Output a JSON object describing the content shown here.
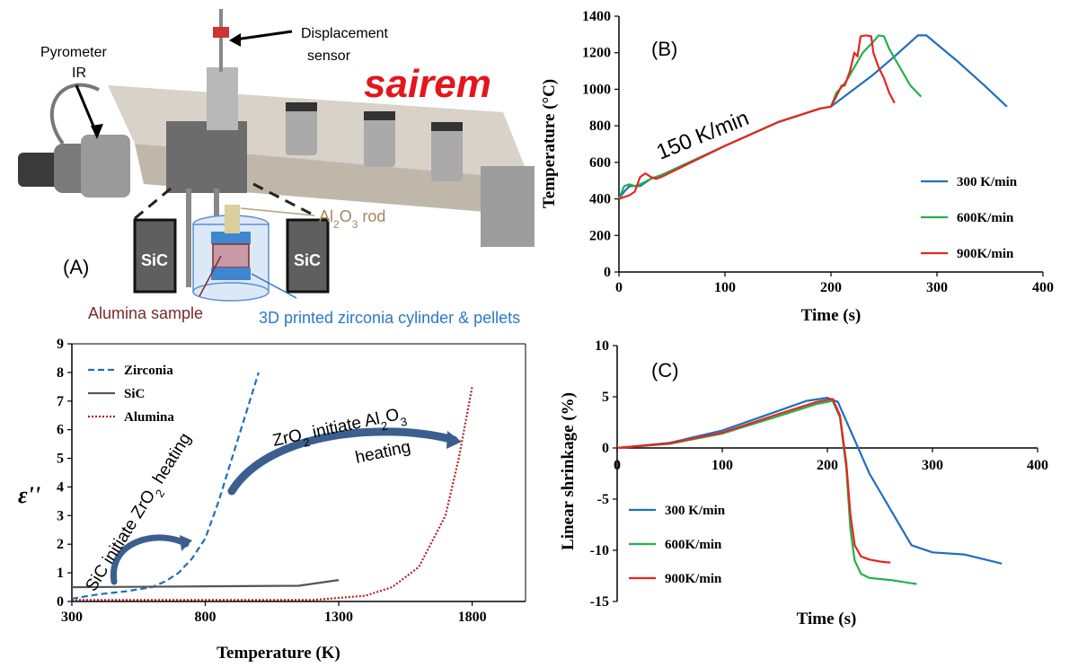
{
  "photo": {
    "label_A": "(A)",
    "pyrometer_line1": "Pyrometer",
    "pyrometer_line2": "IR",
    "displacement_line1": "Displacement",
    "displacement_line2": "sensor",
    "brand": "sairem",
    "sic_left": "SiC",
    "sic_right": "SiC",
    "rod_label_main": "Al",
    "rod_label_sub": "2",
    "rod_label_o": "O",
    "rod_label_sub3": "3",
    "rod_label_tail": " rod",
    "sample_label": "Alumina sample",
    "cylinder_label": "3D printed zirconia cylinder & pellets",
    "colors": {
      "rod": "#b3a07a",
      "sample": "#7a2a2a",
      "cylinder": "#2a78c8"
    }
  },
  "chart_data": [
    {
      "id": "B",
      "type": "line",
      "panel_label": "(B)",
      "xlabel": "Time (s)",
      "ylabel": "Temperature (°C)",
      "xlim": [
        0,
        400
      ],
      "ylim": [
        0,
        1400
      ],
      "xticks": [
        0,
        100,
        200,
        300,
        400
      ],
      "yticks": [
        0,
        200,
        400,
        600,
        800,
        1000,
        1200,
        1400
      ],
      "annotation": "150 K/min",
      "legend_position": "bottom-right",
      "grid": false,
      "series": [
        {
          "name": "300 K/min",
          "color": "#1f6fbd",
          "x": [
            0,
            5,
            10,
            15,
            20,
            30,
            40,
            100,
            150,
            190,
            200,
            240,
            260,
            282,
            290,
            320,
            345,
            366
          ],
          "y": [
            400,
            440,
            470,
            470,
            470,
            510,
            530,
            690,
            820,
            895,
            905,
            1080,
            1180,
            1295,
            1295,
            1150,
            1020,
            905
          ]
        },
        {
          "name": "600K/min",
          "color": "#22b14c",
          "x": [
            0,
            5,
            10,
            15,
            20,
            30,
            40,
            100,
            150,
            190,
            200,
            205,
            210,
            215,
            220,
            225,
            230,
            240,
            245,
            250,
            255,
            265,
            275,
            285
          ],
          "y": [
            400,
            470,
            480,
            470,
            480,
            510,
            530,
            690,
            820,
            895,
            905,
            980,
            1010,
            1050,
            1100,
            1150,
            1200,
            1260,
            1295,
            1290,
            1220,
            1120,
            1020,
            960
          ]
        },
        {
          "name": "900K/min",
          "color": "#e8251f",
          "x": [
            0,
            10,
            15,
            20,
            25,
            30,
            35,
            40,
            100,
            150,
            190,
            200,
            205,
            210,
            213,
            218,
            222,
            225,
            228,
            233,
            238,
            240,
            245,
            250,
            255,
            260
          ],
          "y": [
            400,
            420,
            440,
            520,
            540,
            520,
            510,
            520,
            690,
            820,
            895,
            905,
            960,
            1020,
            1020,
            1100,
            1200,
            1180,
            1290,
            1295,
            1290,
            1200,
            1120,
            1060,
            980,
            925
          ]
        }
      ]
    },
    {
      "id": "C",
      "type": "line",
      "panel_label": "(C)",
      "xlabel": "Time (s)",
      "ylabel": "Linear shrinkage (%)",
      "xlim": [
        0,
        400
      ],
      "ylim": [
        -15,
        10
      ],
      "xticks": [
        0,
        100,
        200,
        300,
        400
      ],
      "yticks": [
        -15,
        -10,
        -5,
        0,
        5,
        10
      ],
      "legend_position": "bottom-left",
      "grid": false,
      "series": [
        {
          "name": "300 K/min",
          "color": "#1f6fbd",
          "x": [
            0,
            50,
            100,
            150,
            180,
            200,
            210,
            225,
            240,
            260,
            280,
            300,
            330,
            366
          ],
          "y": [
            0,
            0.5,
            1.7,
            3.5,
            4.6,
            4.9,
            4.5,
            1.0,
            -2.5,
            -6.0,
            -9.5,
            -10.2,
            -10.4,
            -11.3
          ]
        },
        {
          "name": "600K/min",
          "color": "#22b14c",
          "x": [
            0,
            50,
            100,
            150,
            190,
            205,
            212,
            218,
            222,
            226,
            232,
            240,
            260,
            285
          ],
          "y": [
            0,
            0.4,
            1.4,
            3.0,
            4.3,
            4.6,
            3.0,
            -2.0,
            -8.0,
            -11.0,
            -12.3,
            -12.7,
            -12.9,
            -13.3
          ]
        },
        {
          "name": "900K/min",
          "color": "#e8251f",
          "x": [
            0,
            50,
            100,
            150,
            190,
            205,
            212,
            218,
            222,
            226,
            232,
            240,
            250,
            260
          ],
          "y": [
            0,
            0.45,
            1.5,
            3.2,
            4.5,
            4.8,
            3.2,
            -1.5,
            -6.5,
            -9.5,
            -10.6,
            -10.9,
            -11.1,
            -11.2
          ]
        }
      ]
    },
    {
      "id": "permittivity",
      "type": "line",
      "xlabel": "Temperature  (K)",
      "ylabel": "ε''",
      "xlim": [
        300,
        2000
      ],
      "ylim": [
        0,
        9
      ],
      "xticks": [
        300,
        800,
        1300,
        1800
      ],
      "yticks": [
        0,
        1,
        2,
        3,
        4,
        5,
        6,
        7,
        8,
        9
      ],
      "legend_position": "top-left",
      "grid": false,
      "annotations": [
        {
          "text_main": "SiC initiate  ZrO",
          "sub": "2",
          "tail": " heating"
        },
        {
          "text_main": "ZrO",
          "sub": "2",
          "tail": " initiate  Al",
          "sub2": "2",
          "text2": "O",
          "sub3": "3",
          "line2": "heating"
        }
      ],
      "series": [
        {
          "name": "Zirconia",
          "color": "#1f6fbd",
          "style": "dashed",
          "x": [
            300,
            400,
            500,
            600,
            650,
            700,
            750,
            800,
            850,
            900,
            950,
            1000
          ],
          "y": [
            0.1,
            0.25,
            0.35,
            0.5,
            0.7,
            1.0,
            1.5,
            2.2,
            3.5,
            5.0,
            6.5,
            8.0
          ]
        },
        {
          "name": "SiC",
          "color": "#555555",
          "style": "solid",
          "x": [
            300,
            1150,
            1300
          ],
          "y": [
            0.5,
            0.55,
            0.75
          ]
        },
        {
          "name": "Alumina",
          "color": "#b22222",
          "style": "dotted",
          "x": [
            300,
            1200,
            1400,
            1500,
            1600,
            1700,
            1750,
            1800
          ],
          "y": [
            0.05,
            0.05,
            0.2,
            0.5,
            1.2,
            3.0,
            5.0,
            7.5
          ]
        }
      ]
    }
  ]
}
